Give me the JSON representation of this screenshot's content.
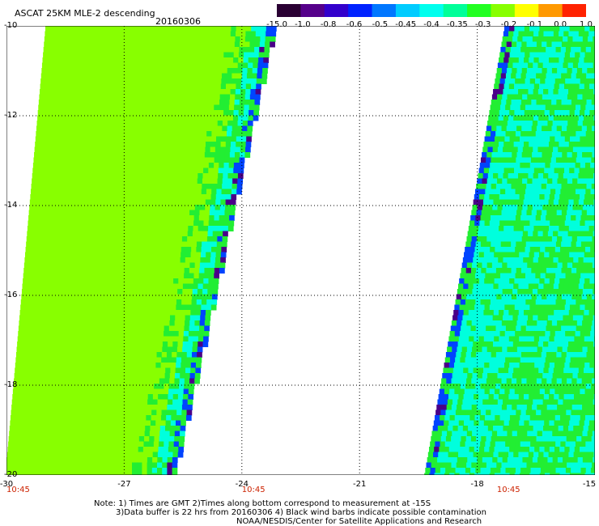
{
  "title": "ASCAT 25KM MLE-2 descending",
  "date": "20160306",
  "colorbar": {
    "labels": [
      "-15.0",
      "-1.0",
      "-0.8",
      "-0.6",
      "-0.5",
      "-0.45",
      "-0.4",
      "-0.35",
      "-0.3",
      "-0.2",
      "-0.1",
      "0.0",
      "1.0"
    ],
    "colors": [
      "#2a0033",
      "#55008a",
      "#3300cc",
      "#0022ff",
      "#0077ff",
      "#00ccff",
      "#00ffee",
      "#00ff99",
      "#22ff22",
      "#88ff00",
      "#ffff00",
      "#ff9900",
      "#ff2200"
    ]
  },
  "map": {
    "lon_range": [
      -30,
      -15
    ],
    "lat_range": [
      -20,
      -10
    ],
    "lat_labels": [
      "-10",
      "-12",
      "-14",
      "-16",
      "-18",
      "-20"
    ],
    "lon_labels": [
      "-30",
      "-27",
      "-24",
      "-21",
      "-18",
      "-15"
    ],
    "swath_colors": {
      "field": "#88ff00",
      "green": "#22ee33",
      "cyan": "#00ffdd",
      "blue": "#0044ff",
      "purple": "#4a0088"
    },
    "time_labels": [
      {
        "text": "10:45",
        "lon": -30
      },
      {
        "text": "10:45",
        "lon": -24
      },
      {
        "text": "10:45",
        "lon": -17.5
      }
    ]
  },
  "notes": {
    "line1": "Note: 1) Times are GMT 2)Times along bottom correspond to measurement at -15S",
    "line2": "3)Data buffer is 22 hrs from 20160306 4) Black wind barbs indicate possible contamination",
    "line3": "NOAA/NESDIS/Center for Satellite Applications and Research"
  }
}
